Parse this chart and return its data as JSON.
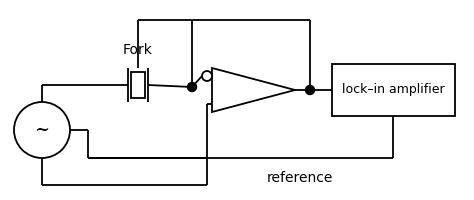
{
  "background_color": "#ffffff",
  "line_color": "#000000",
  "line_width": 1.3,
  "fig_width": 4.74,
  "fig_height": 2.0,
  "dpi": 100,
  "fork_label": "Fork",
  "lockin_label": "lock–in amplifier",
  "reference_label": "reference"
}
